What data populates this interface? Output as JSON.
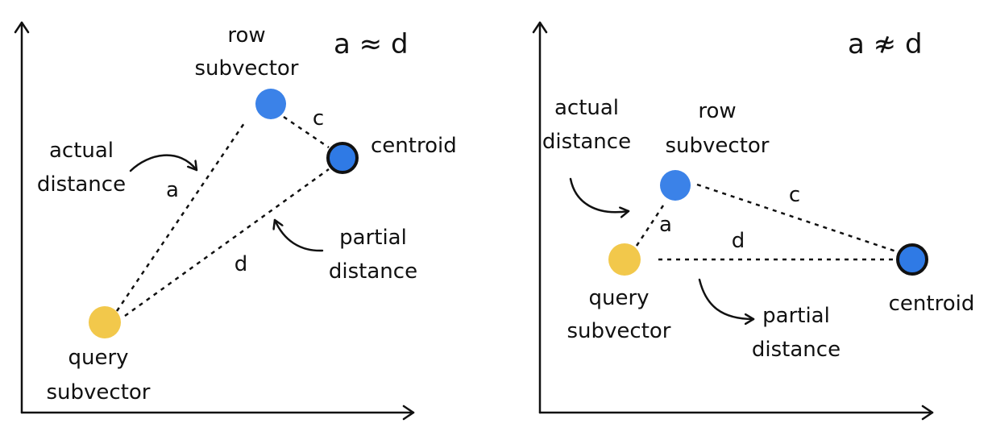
{
  "left": {
    "relation": "a ≈ d",
    "row_label_1": "row",
    "row_label_2": "subvector",
    "centroid_label": "centroid",
    "query_label_1": "query",
    "query_label_2": "subvector",
    "actual_label_1": "actual",
    "actual_label_2": "distance",
    "partial_label_1": "partial",
    "partial_label_2": "distance",
    "edge_a": "a",
    "edge_c": "c",
    "edge_d": "d"
  },
  "right": {
    "relation": "a ≉ d",
    "row_label_1": "row",
    "row_label_2": "subvector",
    "centroid_label": "centroid",
    "query_label_1": "query",
    "query_label_2": "subvector",
    "actual_label_1": "actual",
    "actual_label_2": "distance",
    "partial_label_1": "partial",
    "partial_label_2": "distance",
    "edge_a": "a",
    "edge_c": "c",
    "edge_d": "d"
  },
  "colors": {
    "row_point": "#3b82e8",
    "centroid_point": "#2f7ae5",
    "query_point": "#f2c84b",
    "outline": "#111111"
  }
}
